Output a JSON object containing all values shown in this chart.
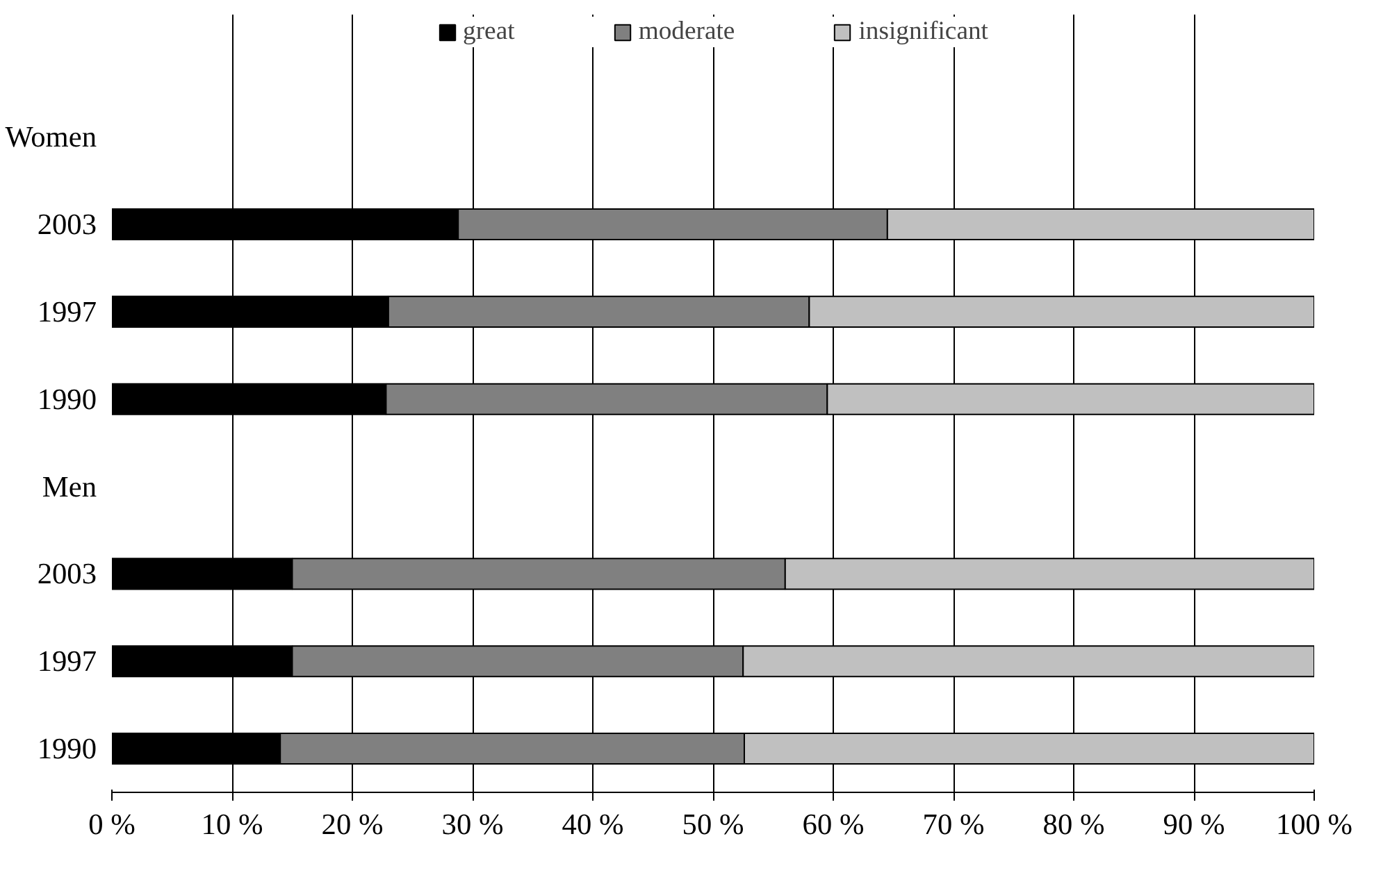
{
  "chart_data": {
    "type": "bar",
    "orientation": "horizontal",
    "stacked": true,
    "categories": [
      "Women",
      "2003",
      "1997",
      "1990",
      "Men",
      "2003",
      "1997",
      "1990"
    ],
    "series": [
      {
        "name": "great",
        "color": "#000000",
        "values": [
          null,
          28.8,
          23,
          22.8,
          null,
          15,
          15,
          14
        ]
      },
      {
        "name": "moderate",
        "color": "#808080",
        "values": [
          null,
          35.7,
          35,
          36.7,
          null,
          41,
          37.5,
          38.6
        ]
      },
      {
        "name": "insignificant",
        "color": "#c0c0c0",
        "values": [
          null,
          35.5,
          42,
          40.5,
          null,
          44,
          47.5,
          47.4
        ]
      }
    ],
    "xlim": [
      0,
      100
    ],
    "xticks": [
      {
        "value": 0,
        "label": "0 %"
      },
      {
        "value": 10,
        "label": "10 %"
      },
      {
        "value": 20,
        "label": "20 %"
      },
      {
        "value": 30,
        "label": "30 %"
      },
      {
        "value": 40,
        "label": "40 %"
      },
      {
        "value": 50,
        "label": "50 %"
      },
      {
        "value": 60,
        "label": "60 %"
      },
      {
        "value": 70,
        "label": "70 %"
      },
      {
        "value": 80,
        "label": "80 %"
      },
      {
        "value": 90,
        "label": "90 %"
      },
      {
        "value": 100,
        "label": "100 %"
      }
    ],
    "grid": "x",
    "legend": "top"
  }
}
